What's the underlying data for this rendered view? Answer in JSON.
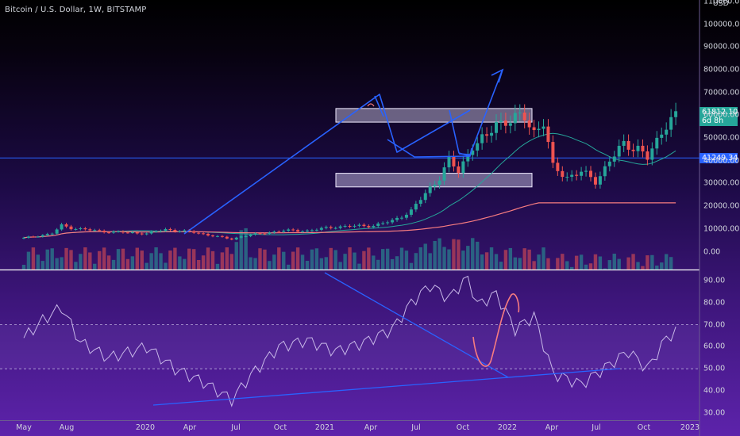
{
  "header": {
    "title": "Bitcoin / U.S. Dollar, 1W, BITSTAMP"
  },
  "axis": {
    "currency": "USD",
    "price_ticks": [
      "110000.00",
      "100000.00",
      "90000.00",
      "80000.00",
      "70000.00",
      "60000.00",
      "50000.00",
      "40000.00",
      "30000.00",
      "20000.00",
      "10000.00",
      "0.00"
    ],
    "rsi_ticks": [
      "90.00",
      "80.00",
      "70.00",
      "60.00",
      "50.00",
      "40.00",
      "30.00"
    ],
    "x_labels": [
      "May",
      "Aug",
      "2020",
      "Apr",
      "Jul",
      "Oct",
      "2021",
      "Apr",
      "Jul",
      "Oct",
      "2022",
      "Apr",
      "Jul",
      "Oct",
      "2023"
    ]
  },
  "badges": {
    "last_price": "61812.10",
    "countdown": "6d 8h",
    "level": "41249.34"
  },
  "colors": {
    "bull": "#26a69a",
    "bear": "#ef5350",
    "drawing": "#2962ff",
    "ma": "#f77c80",
    "box_fill": "#d8d0f0",
    "rsi_line": "#c8b8e8"
  },
  "chart_data": [
    {
      "type": "candlestick",
      "title": "Bitcoin / U.S. Dollar, 1W, BITSTAMP",
      "x": [
        "2019-05",
        "2019-08",
        "2020-01",
        "2020-04",
        "2020-07",
        "2020-10",
        "2021-01",
        "2021-04",
        "2021-07",
        "2021-10"
      ],
      "series": [
        {
          "name": "close",
          "values": [
            7000,
            10500,
            8500,
            8000,
            11000,
            13500,
            38000,
            58000,
            38000,
            61812.1
          ]
        },
        {
          "name": "",
          "values": [
            6500,
            8500,
            9000,
            8500,
            9500,
            10000,
            18000,
            42000,
            37000,
            46000
          ]
        },
        {
          "name": "",
          "values": [
            5500,
            6500,
            7500,
            7800,
            8300,
            9000,
            11000,
            15500,
            18500,
            21500
          ]
        }
      ],
      "horizontal_level": 41249.34,
      "zones": [
        [
          57000,
          63000
        ],
        [
          28500,
          34500
        ]
      ],
      "ylim": [
        0,
        110000
      ]
    },
    {
      "type": "line",
      "x": [
        "2019-05",
        "2019-08",
        "2020-01",
        "2020-04",
        "2020-07",
        "2020-10",
        "2021-01",
        "2021-04",
        "2021-07",
        "2021-10"
      ],
      "values": [
        70,
        62,
        50,
        36,
        60,
        67,
        92,
        72,
        43,
        67
      ],
      "ylim": [
        30,
        90
      ],
      "bands": [
        50,
        70
      ]
    }
  ]
}
